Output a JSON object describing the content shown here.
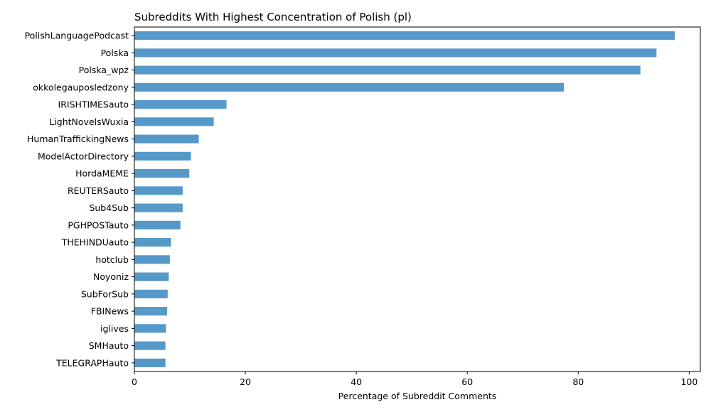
{
  "chart_data": {
    "type": "bar",
    "orientation": "horizontal",
    "title": "Subreddits With Highest Concentration of Polish (pl)",
    "xlabel": "Percentage of Subreddit Comments",
    "ylabel": "",
    "xlim": [
      0,
      102
    ],
    "xticks": [
      0,
      20,
      40,
      60,
      80,
      100
    ],
    "grid": false,
    "bar_color": "#5599c8",
    "categories": [
      "PolishLanguagePodcast",
      "Polska",
      "Polska_wpz",
      "okkolegauposledzony",
      "IRISHTIMESauto",
      "LightNovelsWuxia",
      "HumanTraffickingNews",
      "ModelActorDirectory",
      "HordaMEME",
      "REUTERSauto",
      "Sub4Sub",
      "PGHPOSTauto",
      "THEHINDUauto",
      "hotclub",
      "Noyoniz",
      "SubForSub",
      "FBINews",
      "iglives",
      "SMHauto",
      "TELEGRAPHauto"
    ],
    "values": [
      97.4,
      94.1,
      91.2,
      77.4,
      16.6,
      14.3,
      11.6,
      10.2,
      9.9,
      8.7,
      8.7,
      8.3,
      6.6,
      6.4,
      6.2,
      6.0,
      5.9,
      5.7,
      5.6,
      5.6
    ]
  }
}
